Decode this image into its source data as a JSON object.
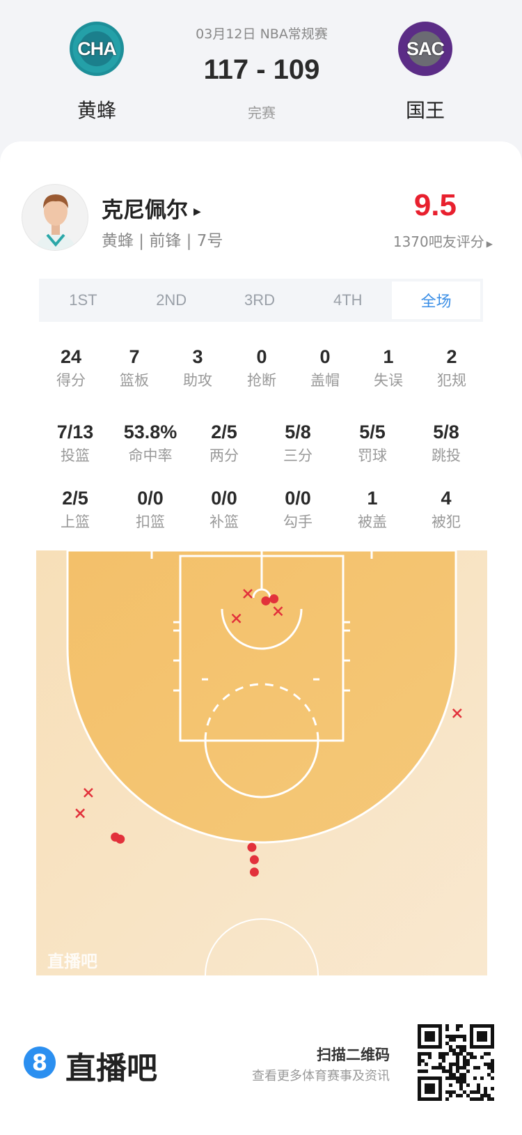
{
  "match": {
    "date_type": "03月12日 NBA常规赛",
    "score": "117 - 109",
    "status": "完赛",
    "home": {
      "abbr": "CHA",
      "name": "黄蜂",
      "color": "#1d8f99"
    },
    "away": {
      "abbr": "SAC",
      "name": "国王",
      "color": "#5b2c86"
    }
  },
  "player": {
    "name": "克尼佩尔",
    "info": "黄蜂 | 前锋 | 7号",
    "rating": "9.5",
    "rating_count": "1370吧友评分",
    "rating_color": "#e8202e"
  },
  "tabs": [
    {
      "label": "1ST"
    },
    {
      "label": "2ND"
    },
    {
      "label": "3RD"
    },
    {
      "label": "4TH"
    },
    {
      "label": "全场",
      "selected": true
    }
  ],
  "stats_row1": [
    {
      "v": "24",
      "l": "得分"
    },
    {
      "v": "7",
      "l": "篮板"
    },
    {
      "v": "3",
      "l": "助攻"
    },
    {
      "v": "0",
      "l": "抢断"
    },
    {
      "v": "0",
      "l": "盖帽"
    },
    {
      "v": "1",
      "l": "失误"
    },
    {
      "v": "2",
      "l": "犯规"
    }
  ],
  "stats_row2": [
    {
      "v": "7/13",
      "l": "投篮"
    },
    {
      "v": "53.8%",
      "l": "命中率"
    },
    {
      "v": "2/5",
      "l": "两分"
    },
    {
      "v": "5/8",
      "l": "三分"
    },
    {
      "v": "5/5",
      "l": "罚球"
    },
    {
      "v": "5/8",
      "l": "跳投"
    }
  ],
  "stats_row3": [
    {
      "v": "2/5",
      "l": "上篮"
    },
    {
      "v": "0/0",
      "l": "扣篮"
    },
    {
      "v": "0/0",
      "l": "补篮"
    },
    {
      "v": "0/0",
      "l": "勾手"
    },
    {
      "v": "1",
      "l": "被盖"
    },
    {
      "v": "4",
      "l": "被犯"
    }
  ],
  "chart_data": {
    "type": "scatter",
    "watermark": "直播吧",
    "units": "ft from basket (x lateral, y toward half-court)",
    "marker_color": "#e2313b",
    "made": [
      [
        0.5,
        0.3
      ],
      [
        1.5,
        0.1
      ],
      [
        -17.9,
        23.2
      ],
      [
        -17.3,
        23.4
      ],
      [
        -1.2,
        24.2
      ],
      [
        -0.9,
        25.4
      ],
      [
        -0.9,
        26.6
      ]
    ],
    "missed": [
      [
        -1.7,
        -0.4
      ],
      [
        -3.1,
        2.0
      ],
      [
        2.0,
        1.3
      ],
      [
        23.9,
        11.2
      ],
      [
        -21.2,
        18.9
      ],
      [
        -22.2,
        20.9
      ]
    ]
  },
  "footer": {
    "brand": "直播吧",
    "brand_icon": "8",
    "scan": "扫描二维码",
    "scan_sub": "查看更多体育赛事及资讯"
  }
}
